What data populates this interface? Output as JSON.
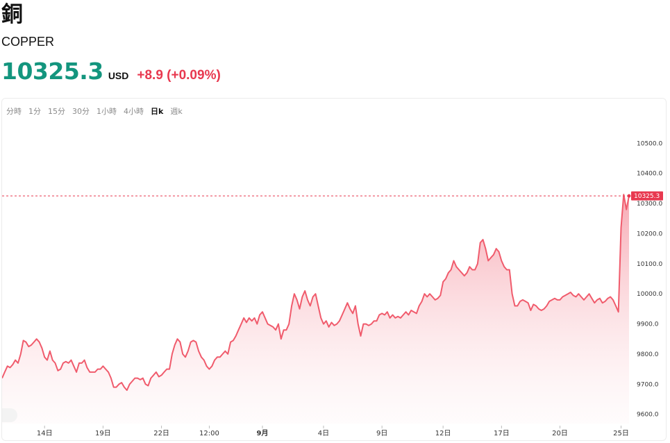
{
  "header": {
    "title": "銅",
    "subtitle": "COPPER",
    "price": "10325.3",
    "currency": "USD",
    "change": "+8.9 (+0.09%)"
  },
  "tabs": [
    {
      "label": "分時",
      "active": false
    },
    {
      "label": "1分",
      "active": false
    },
    {
      "label": "15分",
      "active": false
    },
    {
      "label": "30分",
      "active": false
    },
    {
      "label": "1小時",
      "active": false
    },
    {
      "label": "4小時",
      "active": false
    },
    {
      "label": "日k",
      "active": true
    },
    {
      "label": "週k",
      "active": false
    }
  ],
  "colors": {
    "up": "#e8384f",
    "price_green": "#13957e",
    "line": "#f05b6c"
  },
  "chart_data": {
    "type": "area",
    "ylim": [
      9590,
      10540
    ],
    "yticks": [
      {
        "value": 9600,
        "label": "9600.0"
      },
      {
        "value": 9700,
        "label": "9700.0"
      },
      {
        "value": 9800,
        "label": "9800.0"
      },
      {
        "value": 9900,
        "label": "9900.0"
      },
      {
        "value": 10000,
        "label": "10000.0"
      },
      {
        "value": 10100,
        "label": "10100.0"
      },
      {
        "value": 10200,
        "label": "10200.0"
      },
      {
        "value": 10300,
        "label": "10300.0"
      },
      {
        "value": 10400,
        "label": "10400.0"
      },
      {
        "value": 10500,
        "label": "10500.0"
      }
    ],
    "xticks": [
      {
        "index": 16,
        "label": "14日",
        "bold": false
      },
      {
        "index": 38,
        "label": "19日",
        "bold": false
      },
      {
        "index": 60,
        "label": "22日",
        "bold": false
      },
      {
        "index": 78,
        "label": "12:00",
        "bold": false
      },
      {
        "index": 98,
        "label": "9月",
        "bold": true
      },
      {
        "index": 121,
        "label": "4日",
        "bold": false
      },
      {
        "index": 143,
        "label": "9日",
        "bold": false
      },
      {
        "index": 166,
        "label": "12日",
        "bold": false
      },
      {
        "index": 188,
        "label": "17日",
        "bold": false
      },
      {
        "index": 210,
        "label": "20日",
        "bold": false
      },
      {
        "index": 233,
        "label": "25日",
        "bold": false
      }
    ],
    "last_value": 10325.3,
    "last_label": "10325.3",
    "values": [
      9720,
      9740,
      9760,
      9755,
      9765,
      9780,
      9770,
      9800,
      9845,
      9840,
      9825,
      9830,
      9840,
      9850,
      9840,
      9820,
      9790,
      9780,
      9810,
      9780,
      9770,
      9745,
      9750,
      9770,
      9775,
      9770,
      9780,
      9760,
      9740,
      9770,
      9770,
      9780,
      9755,
      9740,
      9740,
      9740,
      9750,
      9750,
      9760,
      9750,
      9740,
      9720,
      9690,
      9690,
      9700,
      9705,
      9690,
      9680,
      9700,
      9710,
      9720,
      9720,
      9715,
      9720,
      9700,
      9695,
      9720,
      9730,
      9740,
      9725,
      9730,
      9740,
      9750,
      9750,
      9800,
      9830,
      9850,
      9840,
      9800,
      9790,
      9810,
      9840,
      9845,
      9840,
      9810,
      9790,
      9780,
      9760,
      9750,
      9760,
      9780,
      9790,
      9790,
      9800,
      9810,
      9800,
      9840,
      9845,
      9860,
      9880,
      9900,
      9920,
      9905,
      9920,
      9910,
      9920,
      9900,
      9930,
      9940,
      9920,
      9900,
      9895,
      9890,
      9880,
      9900,
      9850,
      9880,
      9880,
      9900,
      9960,
      10000,
      9980,
      9950,
      9990,
      10010,
      9980,
      9960,
      9990,
      10000,
      9960,
      9920,
      9900,
      9910,
      9890,
      9905,
      9895,
      9900,
      9910,
      9930,
      9950,
      9970,
      9950,
      9935,
      9960,
      9900,
      9860,
      9900,
      9900,
      9895,
      9900,
      9910,
      9910,
      9930,
      9935,
      9930,
      9940,
      9920,
      9930,
      9920,
      9925,
      9920,
      9930,
      9940,
      9930,
      9945,
      9940,
      9935,
      9960,
      9975,
      10000,
      9990,
      10000,
      9990,
      9980,
      9985,
      9995,
      10040,
      10050,
      10070,
      10080,
      10110,
      10090,
      10080,
      10070,
      10060,
      10070,
      10090,
      10080,
      10080,
      10100,
      10170,
      10180,
      10150,
      10110,
      10120,
      10130,
      10150,
      10140,
      10110,
      10090,
      10080,
      10080,
      10000,
      9960,
      9960,
      9975,
      9980,
      9975,
      9970,
      9945,
      9965,
      9960,
      9950,
      9945,
      9950,
      9960,
      9975,
      9980,
      9985,
      9980,
      9980,
      9990,
      9995,
      10000,
      10005,
      9995,
      9990,
      10000,
      9990,
      9980,
      9990,
      10000,
      9985,
      9970,
      9980,
      9985,
      9970,
      9975,
      9985,
      9990,
      9980,
      9960,
      9940,
      10220,
      10330,
      10280,
      10325.3
    ]
  }
}
